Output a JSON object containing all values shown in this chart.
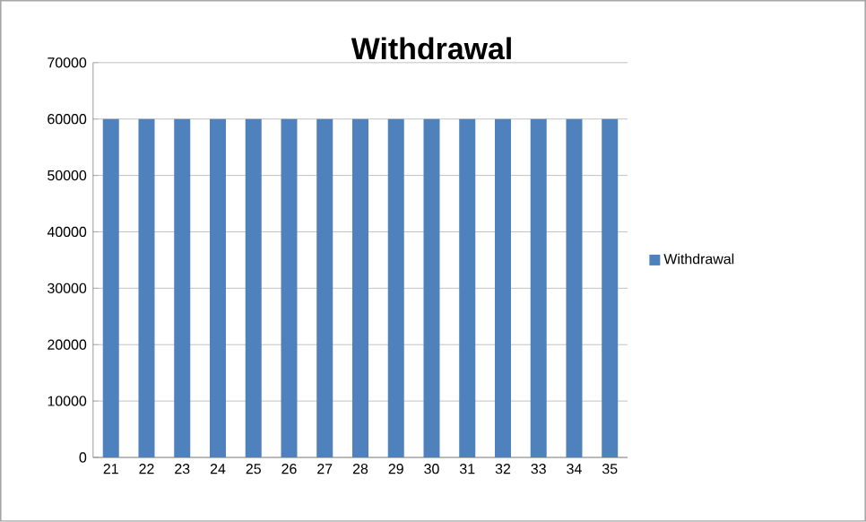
{
  "chart_data": {
    "type": "bar",
    "title": "Withdrawal",
    "categories": [
      "21",
      "22",
      "23",
      "24",
      "25",
      "26",
      "27",
      "28",
      "29",
      "30",
      "31",
      "32",
      "33",
      "34",
      "35"
    ],
    "series": [
      {
        "name": "Withdrawal",
        "color": "#4f81bd",
        "values": [
          60000,
          60000,
          60000,
          60000,
          60000,
          60000,
          60000,
          60000,
          60000,
          60000,
          60000,
          60000,
          60000,
          60000,
          60000
        ]
      }
    ],
    "ylim": [
      0,
      70000
    ],
    "yticks": [
      0,
      10000,
      20000,
      30000,
      40000,
      50000,
      60000,
      70000
    ],
    "grid": "y",
    "legend": "right"
  }
}
